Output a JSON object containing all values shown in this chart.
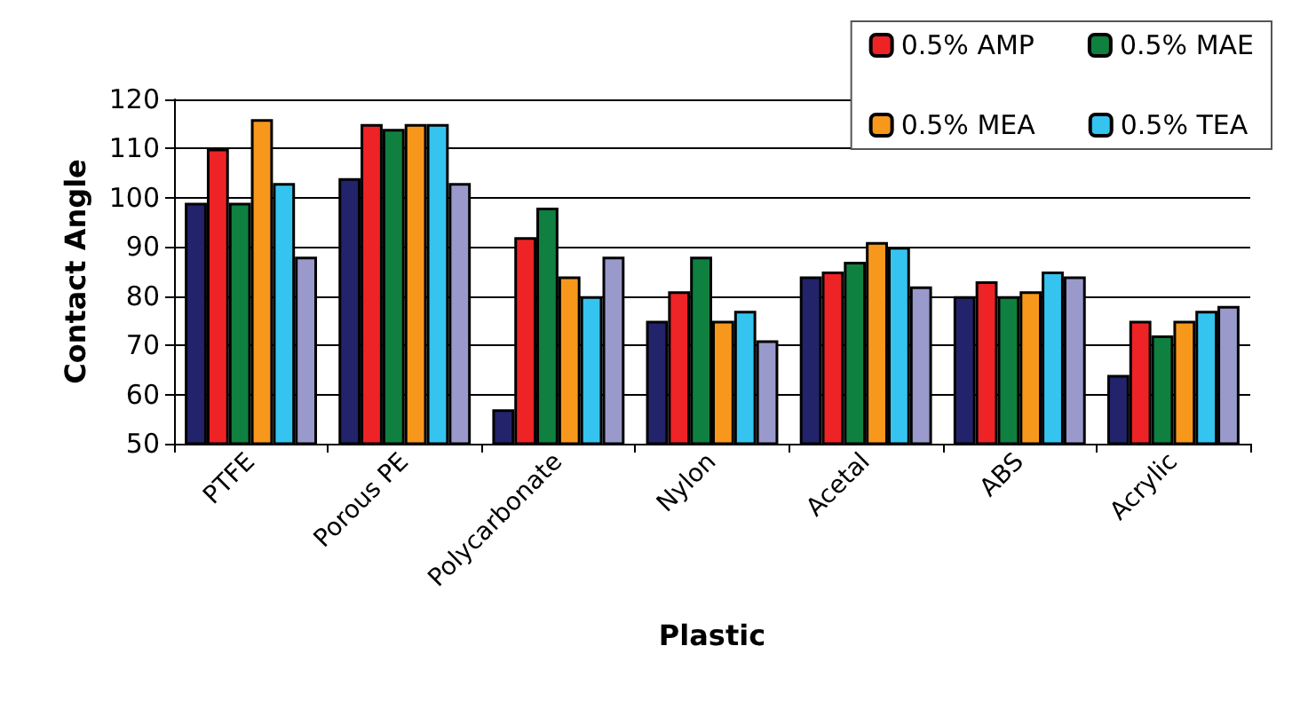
{
  "chart_data": {
    "type": "bar",
    "xlabel": "Plastic",
    "ylabel": "Contact Angle",
    "categories": [
      "PTFE",
      "Porous PE",
      "Polycarbonate",
      "Nylon",
      "Acetal",
      "ABS",
      "Acrylic"
    ],
    "series": [
      {
        "color": "#23236b",
        "values": [
          99,
          104,
          57,
          75,
          84,
          80,
          64
        ]
      },
      {
        "name": "0.5% AMP",
        "color": "#ee2326",
        "values": [
          110,
          115,
          92,
          81,
          85,
          83,
          75
        ]
      },
      {
        "name": "0.5% MAE",
        "color": "#0f8040",
        "values": [
          99,
          114,
          98,
          88,
          87,
          80,
          72
        ]
      },
      {
        "name": "0.5% MEA",
        "color": "#f7981d",
        "values": [
          116,
          115,
          84,
          75,
          91,
          81,
          75
        ]
      },
      {
        "name": "0.5% TEA",
        "color": "#35c4f0",
        "values": [
          103,
          115,
          80,
          77,
          90,
          85,
          77
        ]
      },
      {
        "color": "#9999cc",
        "values": [
          88,
          103,
          88,
          71,
          82,
          84,
          78
        ]
      }
    ],
    "ylim": [
      50,
      120
    ],
    "yticks": [
      50,
      60,
      70,
      80,
      90,
      100,
      110,
      120
    ],
    "grid": "y",
    "legend": "top right"
  }
}
